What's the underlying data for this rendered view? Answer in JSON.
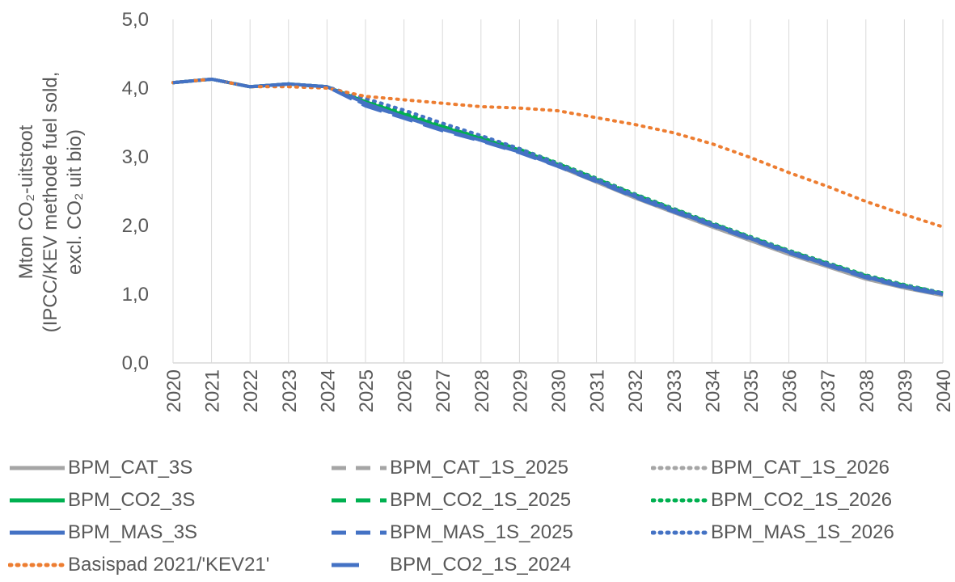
{
  "chart_data": {
    "type": "line",
    "ylabel_line1": "Mton CO₂-uitstoot",
    "ylabel_line2": "(IPCC/KEV methode fuel sold,",
    "ylabel_line3": "excl. CO₂ uit bio)",
    "ylim": [
      0,
      5
    ],
    "yticks": [
      "0,0",
      "1,0",
      "2,0",
      "3,0",
      "4,0",
      "5,0"
    ],
    "x": [
      2020,
      2021,
      2022,
      2023,
      2024,
      2025,
      2026,
      2027,
      2028,
      2029,
      2030,
      2031,
      2032,
      2033,
      2034,
      2035,
      2036,
      2037,
      2038,
      2039,
      2040
    ],
    "grid": "vertical",
    "legend_position": "bottom",
    "series": [
      {
        "name": "BPM_CAT_3S",
        "color": "#a5a5a5",
        "style": "solid",
        "values": [
          4.08,
          4.13,
          4.02,
          4.06,
          4.02,
          3.8,
          3.6,
          3.42,
          3.26,
          3.08,
          2.86,
          2.63,
          2.4,
          2.19,
          1.98,
          1.78,
          1.58,
          1.4,
          1.22,
          1.09,
          0.98
        ]
      },
      {
        "name": "BPM_CAT_1S_2025",
        "color": "#a5a5a5",
        "style": "dash",
        "values": [
          4.08,
          4.13,
          4.02,
          4.06,
          4.02,
          3.8,
          3.61,
          3.43,
          3.27,
          3.09,
          2.87,
          2.64,
          2.41,
          2.2,
          1.99,
          1.79,
          1.59,
          1.41,
          1.23,
          1.1,
          0.99
        ]
      },
      {
        "name": "BPM_CAT_1S_2026",
        "color": "#a5a5a5",
        "style": "dot",
        "values": [
          4.08,
          4.13,
          4.02,
          4.06,
          4.02,
          3.82,
          3.62,
          3.45,
          3.28,
          3.1,
          2.88,
          2.65,
          2.42,
          2.21,
          2.0,
          1.8,
          1.6,
          1.42,
          1.24,
          1.11,
          1.0
        ]
      },
      {
        "name": "BPM_CO2_3S",
        "color": "#00b050",
        "style": "solid",
        "values": [
          4.08,
          4.13,
          4.02,
          4.06,
          4.02,
          3.8,
          3.61,
          3.43,
          3.27,
          3.1,
          2.89,
          2.67,
          2.44,
          2.23,
          2.02,
          1.82,
          1.62,
          1.44,
          1.26,
          1.12,
          1.01
        ]
      },
      {
        "name": "BPM_CO2_1S_2025",
        "color": "#00b050",
        "style": "dash",
        "values": [
          4.08,
          4.13,
          4.02,
          4.06,
          4.02,
          3.8,
          3.62,
          3.44,
          3.28,
          3.11,
          2.9,
          2.68,
          2.45,
          2.24,
          2.03,
          1.83,
          1.63,
          1.45,
          1.27,
          1.13,
          1.02
        ]
      },
      {
        "name": "BPM_CO2_1S_2026",
        "color": "#00b050",
        "style": "dot",
        "values": [
          4.08,
          4.13,
          4.02,
          4.06,
          4.02,
          3.82,
          3.64,
          3.46,
          3.29,
          3.12,
          2.91,
          2.69,
          2.46,
          2.25,
          2.04,
          1.84,
          1.64,
          1.46,
          1.28,
          1.14,
          1.02
        ]
      },
      {
        "name": "BPM_MAS_3S",
        "color": "#4472c4",
        "style": "solid",
        "values": [
          4.08,
          4.13,
          4.02,
          4.06,
          4.02,
          3.78,
          3.58,
          3.4,
          3.24,
          3.07,
          2.87,
          2.65,
          2.42,
          2.21,
          2.01,
          1.81,
          1.61,
          1.43,
          1.25,
          1.11,
          1.0
        ]
      },
      {
        "name": "BPM_MAS_1S_2025",
        "color": "#4472c4",
        "style": "dash",
        "values": [
          4.08,
          4.13,
          4.02,
          4.06,
          4.02,
          3.76,
          3.58,
          3.4,
          3.24,
          3.07,
          2.87,
          2.65,
          2.42,
          2.21,
          2.01,
          1.81,
          1.61,
          1.43,
          1.25,
          1.11,
          1.0
        ]
      },
      {
        "name": "BPM_MAS_1S_2026",
        "color": "#4472c4",
        "style": "dot",
        "values": [
          4.08,
          4.13,
          4.02,
          4.06,
          4.02,
          3.85,
          3.68,
          3.49,
          3.31,
          3.12,
          2.9,
          2.68,
          2.45,
          2.24,
          2.03,
          1.83,
          1.63,
          1.45,
          1.27,
          1.13,
          1.02
        ]
      },
      {
        "name": "Basispad 2021/'KEV21'",
        "color": "#ed7d31",
        "style": "dot",
        "values": [
          4.08,
          4.13,
          4.02,
          4.02,
          4.0,
          3.88,
          3.83,
          3.78,
          3.73,
          3.71,
          3.67,
          3.57,
          3.47,
          3.35,
          3.19,
          2.99,
          2.77,
          2.57,
          2.35,
          2.16,
          1.98
        ]
      },
      {
        "name": "BPM_CO2_1S_2024",
        "color": "#4472c4",
        "style": "dash-long",
        "values": [
          4.08,
          4.13,
          4.02,
          4.06,
          4.02,
          3.74,
          3.56,
          3.38,
          3.23,
          3.06,
          2.86,
          2.64,
          2.41,
          2.2,
          2.0,
          1.8,
          1.6,
          1.42,
          1.24,
          1.1,
          0.99
        ]
      }
    ]
  }
}
